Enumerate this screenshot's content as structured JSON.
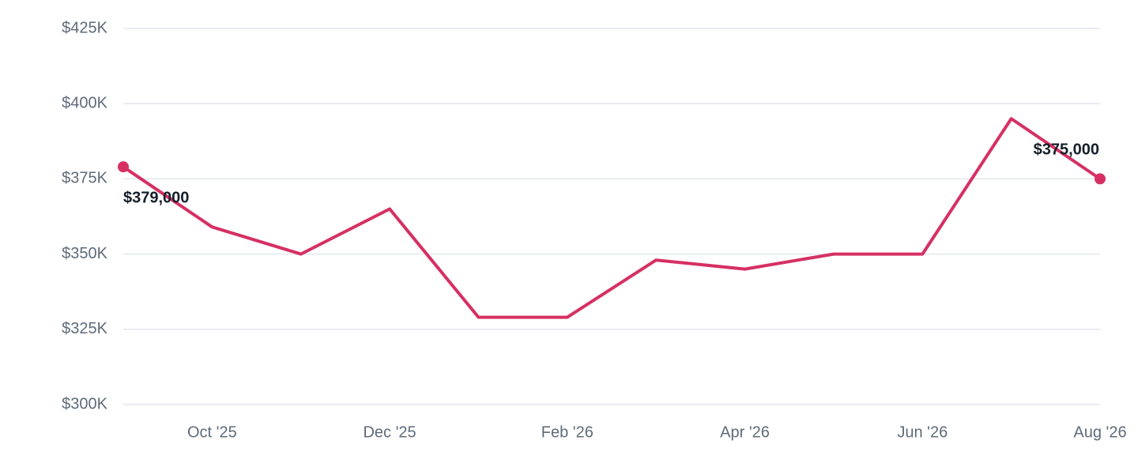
{
  "chart_data": {
    "type": "line",
    "categories": [
      null,
      "Oct '25",
      null,
      "Dec '25",
      null,
      "Feb '26",
      null,
      "Apr '26",
      null,
      "Jun '26",
      null,
      "Aug '26"
    ],
    "series": [
      {
        "color": "#d63063",
        "values": [
          379000,
          359000,
          350000,
          365000,
          329000,
          329000,
          348000,
          345000,
          350000,
          350000,
          395000,
          375000
        ],
        "value_labels": [
          "$379,000",
          null,
          null,
          null,
          null,
          null,
          null,
          null,
          null,
          null,
          null,
          "$375,000"
        ]
      }
    ],
    "ylim": [
      300000,
      425000
    ],
    "yticks": [
      {
        "value": 300000,
        "label": "$300K"
      },
      {
        "value": 325000,
        "label": "$325K"
      },
      {
        "value": 350000,
        "label": "$350K"
      },
      {
        "value": 375000,
        "label": "$375K"
      },
      {
        "value": 400000,
        "label": "$400K"
      },
      {
        "value": 425000,
        "label": "$425K"
      }
    ],
    "grid": true
  }
}
